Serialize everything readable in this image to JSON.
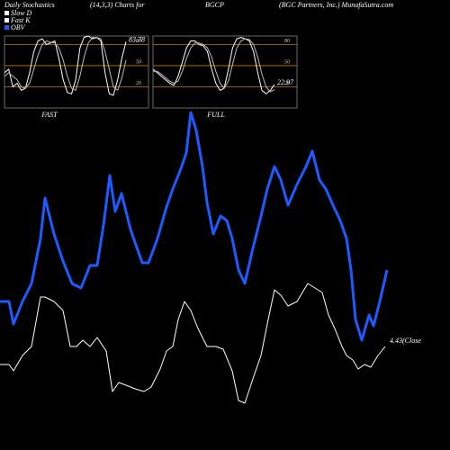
{
  "header": {
    "title_left": "Daily Stochastics",
    "title_params": "(14,3,3) Charts for",
    "symbol": "BGCP",
    "company": "(BGC Partners, Inc.) MunafaSutra.com",
    "legend": [
      {
        "name": "Slow D",
        "color": "#ffffff"
      },
      {
        "name": "Fast K",
        "color": "#ffffff"
      },
      {
        "name": "OBV",
        "color": "#1e5bff"
      }
    ]
  },
  "chart_data": [
    {
      "type": "line",
      "title": "FAST",
      "ylim": [
        -10,
        92
      ],
      "yticks": [
        20,
        50,
        80
      ],
      "xlim": [
        0,
        29
      ],
      "grid_color": "#c87800",
      "value_label": "83.78",
      "x": [
        0,
        1,
        2,
        3,
        4,
        5,
        6,
        7,
        8,
        9,
        10,
        11,
        12,
        13,
        14,
        15,
        16,
        17,
        18,
        19,
        20,
        21,
        22,
        23,
        24,
        25,
        26,
        27,
        28,
        29
      ],
      "series": [
        {
          "color": "#ffffff",
          "values": [
            40,
            45,
            20,
            25,
            15,
            18,
            40,
            70,
            85,
            88,
            80,
            82,
            85,
            60,
            30,
            12,
            10,
            30,
            75,
            90,
            92,
            88,
            90,
            85,
            40,
            10,
            8,
            30,
            60,
            83.78
          ]
        },
        {
          "color": "#bbbbbb",
          "values": [
            35,
            40,
            35,
            30,
            20,
            18,
            25,
            45,
            65,
            80,
            85,
            83,
            82,
            75,
            58,
            35,
            18,
            15,
            35,
            62,
            82,
            90,
            90,
            88,
            70,
            45,
            20,
            15,
            32,
            58
          ]
        }
      ]
    },
    {
      "type": "line",
      "title": "FULL",
      "ylim": [
        -10,
        92
      ],
      "yticks": [
        20,
        50,
        80
      ],
      "xlim": [
        0,
        29
      ],
      "grid_color": "#c87800",
      "value_label": "22.97",
      "x": [
        0,
        1,
        2,
        3,
        4,
        5,
        6,
        7,
        8,
        9,
        10,
        11,
        12,
        13,
        14,
        15,
        16,
        17,
        18,
        19,
        20,
        21,
        22,
        23,
        24,
        25,
        26,
        27,
        28,
        29
      ],
      "series": [
        {
          "color": "#ffffff",
          "values": [
            45,
            40,
            35,
            30,
            25,
            22,
            35,
            55,
            75,
            85,
            85,
            80,
            78,
            70,
            45,
            25,
            15,
            18,
            45,
            75,
            88,
            90,
            88,
            85,
            70,
            40,
            15,
            10,
            15,
            22.97
          ]
        },
        {
          "color": "#bbbbbb",
          "values": [
            42,
            42,
            38,
            33,
            28,
            25,
            28,
            42,
            60,
            75,
            82,
            82,
            80,
            75,
            62,
            42,
            25,
            18,
            28,
            52,
            75,
            85,
            88,
            87,
            80,
            62,
            38,
            20,
            13,
            16
          ]
        }
      ]
    },
    {
      "type": "line",
      "xlim": [
        0,
        500
      ],
      "ylim": [
        0,
        500
      ],
      "annotation": "4.43(Close",
      "series": [
        {
          "color": "#1e5bff",
          "x": [
            0,
            10,
            15,
            25,
            35,
            45,
            50,
            60,
            70,
            80,
            90,
            100,
            108,
            115,
            122,
            128,
            135,
            145,
            152,
            158,
            165,
            175,
            185,
            192,
            200,
            207,
            212,
            218,
            225,
            230,
            237,
            245,
            252,
            258,
            265,
            272,
            280,
            290,
            297,
            305,
            312,
            320,
            330,
            340,
            347,
            355,
            362,
            370,
            378,
            385,
            390,
            395,
            402,
            410,
            415,
            422,
            430
          ],
          "values": [
            165,
            165,
            140,
            165,
            185,
            235,
            280,
            240,
            210,
            185,
            180,
            205,
            205,
            250,
            305,
            265,
            285,
            245,
            225,
            208,
            208,
            235,
            270,
            290,
            310,
            330,
            375,
            355,
            315,
            275,
            240,
            260,
            255,
            235,
            200,
            185,
            220,
            260,
            290,
            315,
            300,
            272,
            295,
            315,
            332,
            300,
            290,
            272,
            255,
            235,
            200,
            145,
            122,
            150,
            138,
            165,
            200
          ]
        },
        {
          "color": "#ffffff",
          "x": [
            0,
            10,
            15,
            25,
            35,
            45,
            50,
            60,
            70,
            78,
            85,
            92,
            100,
            108,
            118,
            125,
            132,
            140,
            150,
            160,
            168,
            178,
            185,
            192,
            198,
            205,
            212,
            220,
            230,
            240,
            248,
            258,
            265,
            272,
            282,
            290,
            298,
            305,
            312,
            320,
            330,
            342,
            350,
            358,
            365,
            372,
            380,
            385,
            392,
            398,
            405,
            412,
            420,
            428
          ],
          "values": [
            95,
            95,
            88,
            105,
            115,
            170,
            170,
            165,
            155,
            115,
            115,
            122,
            115,
            125,
            110,
            65,
            75,
            72,
            68,
            65,
            70,
            90,
            110,
            115,
            145,
            165,
            155,
            135,
            115,
            115,
            112,
            88,
            55,
            52,
            82,
            105,
            145,
            178,
            172,
            160,
            165,
            185,
            180,
            175,
            150,
            135,
            115,
            105,
            100,
            90,
            95,
            92,
            105,
            115
          ]
        }
      ]
    }
  ]
}
